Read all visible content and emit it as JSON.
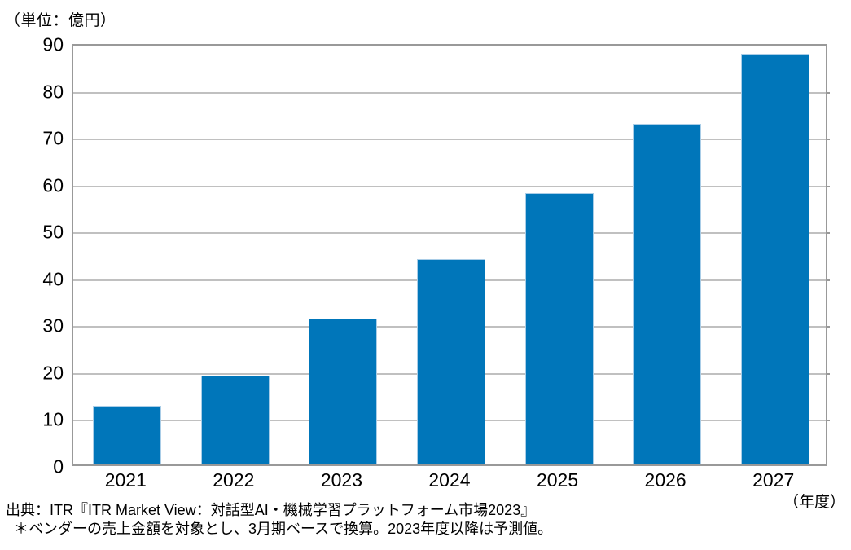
{
  "unit_label": "（単位：億円）",
  "x_axis_unit_label": "（年度）",
  "source": {
    "line1": "出典：ITR『ITR Market View：対話型AI・機械学習プラットフォーム市場2023』",
    "line2": "＊ベンダーの売上金額を対象とし、3月期ベースで換算。2023年度以降は予測値。"
  },
  "colors": {
    "bar": "#0076ba",
    "bar_edge": "#a9cde7",
    "gridline": "#c0c0c0",
    "plot_border": "#999999",
    "text": "#000000",
    "background": "#ffffff"
  },
  "chart_data": {
    "type": "bar",
    "categories": [
      "2021",
      "2022",
      "2023",
      "2024",
      "2025",
      "2026",
      "2027"
    ],
    "values": [
      12.5,
      19.0,
      31.1,
      43.7,
      57.8,
      72.6,
      87.6
    ],
    "title": "",
    "xlabel": "（年度）",
    "ylabel": "（単位：億円）",
    "ylim": [
      0,
      90
    ],
    "yticks": [
      0,
      10,
      20,
      30,
      40,
      50,
      60,
      70,
      80,
      90
    ],
    "grid": true,
    "legend": false,
    "series_color": "#0076ba"
  }
}
